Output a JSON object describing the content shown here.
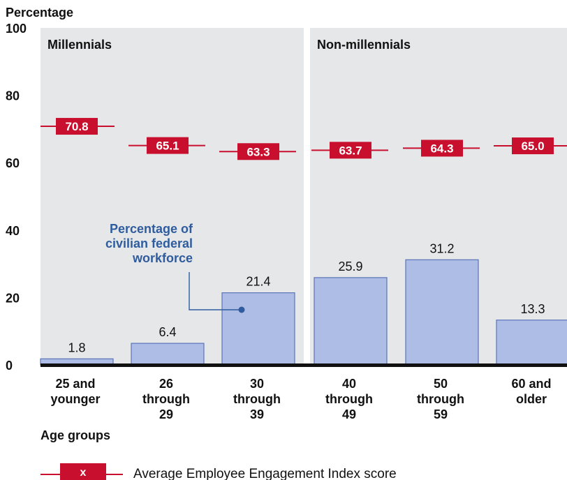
{
  "chart_data": {
    "type": "bar",
    "ylabel": "Percentage",
    "xlabel": "Age groups",
    "ylim": [
      0,
      100
    ],
    "y_ticks": [
      0,
      20,
      40,
      60,
      80,
      100
    ],
    "groups": [
      {
        "label": "Millennials",
        "category_indices": [
          0,
          1,
          2
        ]
      },
      {
        "label": "Non-millennials",
        "category_indices": [
          3,
          4,
          5
        ]
      }
    ],
    "categories": [
      [
        "25 and",
        "younger"
      ],
      [
        "26",
        "through",
        "29"
      ],
      [
        "30",
        "through",
        "39"
      ],
      [
        "40",
        "through",
        "49"
      ],
      [
        "50",
        "through",
        "59"
      ],
      [
        "60 and",
        "older"
      ]
    ],
    "series": [
      {
        "values": [
          1.8,
          6.4,
          21.4,
          25.9,
          31.2,
          13.3
        ],
        "labels": [
          "1.8",
          "6.4",
          "21.4",
          "25.9",
          "31.2",
          "13.3"
        ],
        "color": "#aebde6"
      },
      {
        "values": [
          70.8,
          65.1,
          63.3,
          63.7,
          64.3,
          65.0
        ],
        "labels": [
          "70.8",
          "65.1",
          "63.3",
          "63.7",
          "64.3",
          "65.0"
        ],
        "color": "#c8102e"
      }
    ],
    "annotation": {
      "text": [
        "Percentage of",
        "civilian federal",
        "workforce"
      ],
      "color": "#2e5c9e",
      "target_category": 2
    },
    "legend": {
      "marker_text": "x",
      "text": "Average Employee Engagement Index score"
    }
  }
}
